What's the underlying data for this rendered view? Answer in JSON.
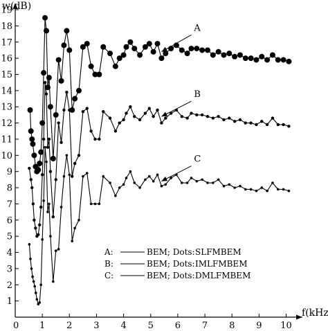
{
  "chart_data": {
    "type": "line",
    "ylabel": "w(dB)",
    "xlabel": "f(kHz)",
    "xlim": [
      0,
      10.6
    ],
    "ylim": [
      0,
      19.6
    ],
    "x_ticks": [
      "0",
      "1",
      "2",
      "3",
      "4",
      "5",
      "6",
      "7",
      "8",
      "9",
      "10"
    ],
    "y_ticks": [
      "0",
      "1",
      "2",
      "3",
      "4",
      "5",
      "6",
      "7",
      "8",
      "9",
      "10",
      "11",
      "12",
      "13",
      "14",
      "15",
      "16",
      "17",
      "18",
      "19"
    ],
    "grid": false,
    "legend_position": "center-right",
    "legend": [
      {
        "key": "A:",
        "line_label": "BEM; Dots:",
        "dots_label": "SLFMBEM"
      },
      {
        "key": "B:",
        "line_label": "BEM; Dots:",
        "dots_label": "IMLFMBEM"
      },
      {
        "key": "C:",
        "line_label": "BEM; Dots:",
        "dots_label": "DMLFMBEM"
      }
    ],
    "annotations": [
      {
        "text": "A",
        "target_x": 5.4,
        "target_y": 16.4,
        "text_x": 6.6,
        "text_y": 17.7
      },
      {
        "text": "B",
        "target_x": 5.4,
        "target_y": 12.4,
        "text_x": 6.6,
        "text_y": 13.6
      },
      {
        "text": "C",
        "target_x": 5.4,
        "target_y": 8.4,
        "text_x": 6.6,
        "text_y": 9.6
      }
    ],
    "series": [
      {
        "key": "A",
        "dot_radius": 4,
        "x": [
          0.55,
          0.58,
          0.62,
          0.65,
          0.7,
          0.75,
          0.8,
          0.85,
          0.9,
          0.95,
          1.0,
          1.05,
          1.1,
          1.15,
          1.2,
          1.25,
          1.3,
          1.4,
          1.5,
          1.6,
          1.7,
          1.8,
          1.9,
          2.0,
          2.1,
          2.2,
          2.35,
          2.5,
          2.65,
          2.8,
          2.95,
          3.1,
          3.25,
          3.5,
          3.7,
          3.85,
          4.0,
          4.1,
          4.25,
          4.4,
          4.6,
          4.8,
          4.95,
          5.1,
          5.25,
          5.4,
          5.55,
          5.75,
          5.95,
          6.15,
          6.35,
          6.5,
          6.7,
          6.9,
          7.1,
          7.3,
          7.5,
          7.7,
          7.9,
          8.1,
          8.3,
          8.5,
          8.7,
          8.9,
          9.1,
          9.3,
          9.5,
          9.7,
          9.9,
          10.1
        ],
        "y": [
          12.8,
          11.5,
          11.0,
          10.7,
          10.0,
          9.3,
          9.0,
          9.1,
          9.5,
          10.2,
          12.0,
          15.1,
          18.5,
          17.7,
          14.2,
          14.8,
          13.0,
          9.8,
          12.5,
          15.9,
          14.6,
          16.8,
          17.7,
          16.5,
          12.8,
          13.5,
          14.0,
          16.7,
          16.9,
          15.5,
          15.0,
          15.0,
          16.7,
          16.3,
          15.5,
          16.0,
          16.2,
          16.7,
          17.0,
          16.6,
          16.2,
          16.7,
          16.9,
          16.4,
          16.9,
          16.0,
          16.3,
          16.6,
          16.8,
          16.5,
          16.3,
          16.6,
          16.6,
          16.5,
          16.5,
          16.2,
          16.4,
          16.2,
          16.3,
          16.1,
          16.2,
          16.0,
          16.0,
          15.9,
          16.1,
          15.9,
          16.2,
          15.9,
          15.9,
          15.8
        ]
      },
      {
        "key": "B",
        "dot_radius": 2.2,
        "x": [
          0.52,
          0.58,
          0.62,
          0.66,
          0.7,
          0.75,
          0.8,
          0.85,
          0.9,
          0.95,
          1.0,
          1.05,
          1.1,
          1.15,
          1.2,
          1.25,
          1.3,
          1.4,
          1.5,
          1.6,
          1.7,
          1.8,
          1.9,
          2.0,
          2.1,
          2.2,
          2.35,
          2.5,
          2.65,
          2.8,
          2.95,
          3.1,
          3.25,
          3.5,
          3.7,
          3.85,
          4.0,
          4.1,
          4.25,
          4.4,
          4.6,
          4.8,
          4.95,
          5.1,
          5.25,
          5.4,
          5.55,
          5.75,
          5.95,
          6.15,
          6.35,
          6.5,
          6.7,
          6.9,
          7.1,
          7.3,
          7.5,
          7.7,
          7.9,
          8.1,
          8.3,
          8.5,
          8.7,
          8.9,
          9.1,
          9.3,
          9.5,
          9.7,
          9.9,
          10.1
        ],
        "y": [
          9.2,
          8.5,
          8.0,
          7.0,
          6.0,
          5.5,
          5.0,
          5.1,
          5.7,
          6.8,
          8.8,
          11.0,
          14.5,
          13.8,
          10.5,
          11.0,
          9.0,
          6.2,
          8.5,
          12.0,
          10.8,
          12.8,
          13.9,
          12.8,
          8.7,
          9.5,
          10.0,
          12.7,
          12.9,
          11.5,
          11.0,
          11.0,
          12.7,
          12.3,
          11.5,
          12.0,
          12.2,
          12.6,
          13.0,
          12.4,
          12.2,
          12.6,
          12.9,
          12.4,
          12.8,
          12.0,
          12.3,
          12.6,
          12.8,
          12.4,
          12.3,
          12.6,
          12.5,
          12.5,
          12.4,
          12.3,
          12.4,
          12.2,
          12.3,
          12.1,
          12.2,
          12.0,
          12.0,
          11.9,
          12.1,
          11.9,
          12.3,
          11.9,
          11.9,
          11.8
        ]
      },
      {
        "key": "C",
        "dot_radius": 1.8,
        "x": [
          0.52,
          0.56,
          0.6,
          0.64,
          0.68,
          0.72,
          0.76,
          0.8,
          0.85,
          0.9,
          0.95,
          1.0,
          1.05,
          1.1,
          1.15,
          1.2,
          1.25,
          1.3,
          1.4,
          1.5,
          1.6,
          1.7,
          1.8,
          1.9,
          2.0,
          2.1,
          2.2,
          2.35,
          2.5,
          2.65,
          2.8,
          2.95,
          3.1,
          3.25,
          3.5,
          3.7,
          3.85,
          4.0,
          4.1,
          4.25,
          4.4,
          4.6,
          4.8,
          4.95,
          5.1,
          5.25,
          5.4,
          5.55,
          5.75,
          5.95,
          6.15,
          6.35,
          6.5,
          6.7,
          6.9,
          7.1,
          7.3,
          7.5,
          7.7,
          7.9,
          8.1,
          8.3,
          8.5,
          8.7,
          8.9,
          9.1,
          9.3,
          9.5,
          9.7,
          9.9,
          10.1
        ],
        "y": [
          4.5,
          3.6,
          3.0,
          2.5,
          2.2,
          1.9,
          1.5,
          1.1,
          0.8,
          0.9,
          2.0,
          4.8,
          7.2,
          10.5,
          9.6,
          6.5,
          7.0,
          5.0,
          2.2,
          4.1,
          4.2,
          6.8,
          8.7,
          10.0,
          8.8,
          4.7,
          5.5,
          6.0,
          8.7,
          8.9,
          7.0,
          7.0,
          7.0,
          8.7,
          8.3,
          7.5,
          8.0,
          8.2,
          8.6,
          9.0,
          8.3,
          8.0,
          8.5,
          8.7,
          8.4,
          8.8,
          8.1,
          8.2,
          8.6,
          8.8,
          8.3,
          8.3,
          8.6,
          8.4,
          8.5,
          8.3,
          8.3,
          8.5,
          8.1,
          8.2,
          8.0,
          8.1,
          7.9,
          7.9,
          7.8,
          8.0,
          7.8,
          8.3,
          7.9,
          7.9,
          7.8
        ]
      }
    ]
  }
}
